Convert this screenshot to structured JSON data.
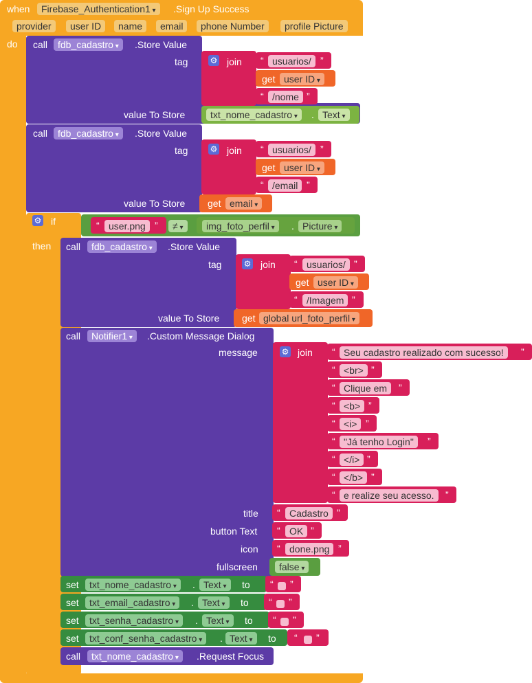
{
  "event": {
    "when": "when",
    "component": "Firebase_Authentication1",
    "event_name": ".Sign Up Success",
    "params": [
      "provider",
      "user ID",
      "name",
      "email",
      "phone Number",
      "profile Picture"
    ],
    "do": "do"
  },
  "store1": {
    "call": "call",
    "component": "fdb_cadastro",
    "method": ".Store Value",
    "tag": "tag",
    "join": "join",
    "str1": "usuarios/",
    "get": "get",
    "var": "user ID",
    "str2": "/nome",
    "value_label": "value To Store",
    "comp": "txt_nome_cadastro",
    "prop": "Text"
  },
  "store2": {
    "call": "call",
    "component": "fdb_cadastro",
    "method": ".Store Value",
    "tag": "tag",
    "join": "join",
    "str1": "usuarios/",
    "get": "get",
    "var": "user ID",
    "str2": "/email",
    "value_label": "value To Store",
    "get2": "get",
    "var2": "email"
  },
  "ifblk": {
    "if": "if",
    "then": "then",
    "str": "user.png",
    "op": "≠",
    "comp": "img_foto_perfil",
    "prop": "Picture"
  },
  "store3": {
    "call": "call",
    "component": "fdb_cadastro",
    "method": ".Store Value",
    "tag": "tag",
    "join": "join",
    "str1": "usuarios/",
    "get": "get",
    "var": "user ID",
    "str2": "/Imagem",
    "value_label": "value To Store",
    "get2": "get",
    "var2": "global url_foto_perfil"
  },
  "notifier": {
    "call": "call",
    "component": "Notifier1",
    "method": ".Custom Message Dialog",
    "message_label": "message",
    "join": "join",
    "strings": [
      "Seu cadastro realizado com sucesso!",
      "<br>",
      "Clique em",
      "<b>",
      "<i>",
      "\"Já tenho Login\"",
      "</i>",
      "</b>",
      "e realize seu acesso."
    ],
    "title_label": "title",
    "title": "Cadastro",
    "button_label": "button Text",
    "button": "OK",
    "icon_label": "icon",
    "icon": "done.png",
    "fullscreen_label": "fullscreen",
    "fullscreen": "false"
  },
  "sets": [
    {
      "set": "set",
      "comp": "txt_nome_cadastro",
      "prop": "Text",
      "to": "to"
    },
    {
      "set": "set",
      "comp": "txt_email_cadastro",
      "prop": "Text",
      "to": "to"
    },
    {
      "set": "set",
      "comp": "txt_senha_cadastro",
      "prop": "Text",
      "to": "to"
    },
    {
      "set": "set",
      "comp": "txt_conf_senha_cadastro",
      "prop": "Text",
      "to": "to"
    }
  ],
  "focus": {
    "call": "call",
    "comp": "txt_nome_cadastro",
    "method": ".Request Focus"
  }
}
